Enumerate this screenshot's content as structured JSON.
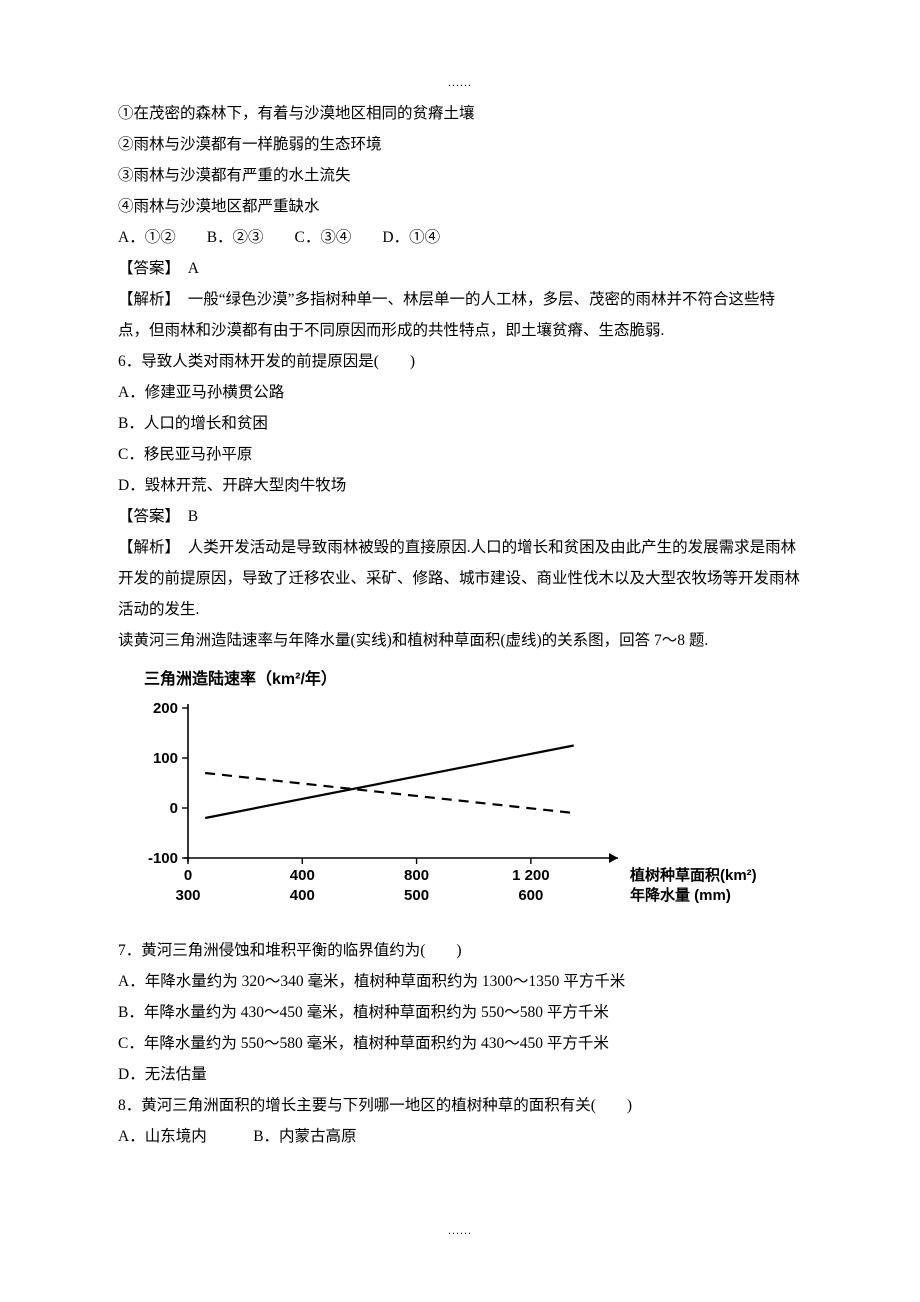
{
  "dots": "......",
  "lines": {
    "l1": "①在茂密的森林下，有着与沙漠地区相同的贫瘠土壤",
    "l2": "②雨林与沙漠都有一样脆弱的生态环境",
    "l3": "③雨林与沙漠都有严重的水土流失",
    "l4": "④雨林与沙漠地区都严重缺水",
    "l5": "A．①②　　B．②③　　C．③④　　D．①④",
    "a5": "【答案】　A",
    "e5": "【解析】　一般“绿色沙漠”多指树种单一、林层单一的人工林，多层、茂密的雨林并不符合这些特点，但雨林和沙漠都有由于不同原因而形成的共性特点，即土壤贫瘠、生态脆弱.",
    "q6": "6．导致人类对雨林开发的前提原因是(　　)",
    "q6a": "A．修建亚马孙横贯公路",
    "q6b": "B．人口的增长和贫困",
    "q6c": "C．移民亚马孙平原",
    "q6d": "D．毁林开荒、开辟大型肉牛牧场",
    "a6": "【答案】　B",
    "e6": "【解析】　人类开发活动是导致雨林被毁的直接原因.人口的增长和贫困及由此产生的发展需求是雨林开发的前提原因，导致了迁移农业、采矿、修路、城市建设、商业性伐木以及大型农牧场等开发雨林活动的发生.",
    "intro78": "读黄河三角洲造陆速率与年降水量(实线)和植树种草面积(虚线)的关系图，回答 7～8 题.",
    "q7": "7．黄河三角洲侵蚀和堆积平衡的临界值约为(　　)",
    "q7a": "A．年降水量约为 320～340 毫米，植树种草面积约为 1300～1350 平方千米",
    "q7b": "B．年降水量约为 430～450 毫米，植树种草面积约为 550～580 平方千米",
    "q7c": "C．年降水量约为 550～580 毫米，植树种草面积约为 430～450 平方千米",
    "q7d": "D．无法估量",
    "q8": "8．黄河三角洲面积的增长主要与下列哪一地区的植树种草的面积有关(　　)",
    "q8a": "A．山东境内　　　B．内蒙古高原"
  },
  "chart": {
    "title": "三角洲造陆速率（km²/年）",
    "y_ticks": [
      -100,
      0,
      100,
      200
    ],
    "x_top": {
      "ticks": [
        0,
        400,
        800,
        1200
      ],
      "label": "植树种草面积(km²)"
    },
    "x_bot": {
      "ticks": [
        300,
        400,
        500,
        600
      ],
      "label": "年降水量 (mm)"
    },
    "y_range": [
      -100,
      200
    ],
    "x_range": [
      0,
      1400
    ],
    "solid_line": {
      "p1": [
        60,
        -20
      ],
      "p2": [
        1350,
        125
      ]
    },
    "dashed_line": {
      "p1": [
        60,
        70
      ],
      "p2": [
        1350,
        -10
      ]
    },
    "colors": {
      "axis": "#000000",
      "solid": "#000000",
      "dashed": "#000000",
      "bg": "#ffffff"
    },
    "stroke_width": 2.2,
    "dash": "10 7",
    "font_family": "SimHei",
    "font_size": 15
  }
}
